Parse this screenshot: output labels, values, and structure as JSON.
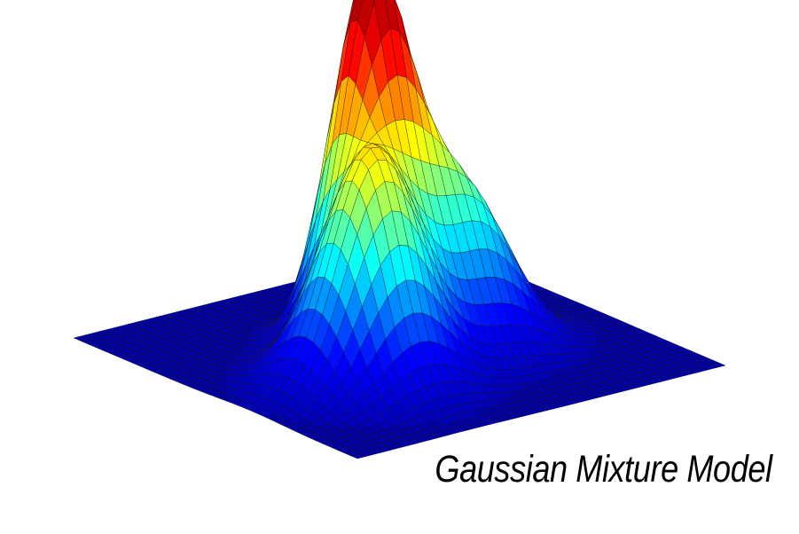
{
  "title": "Gaussian Mixture Model",
  "chart_data": {
    "type": "surface",
    "title": "Gaussian Mixture Model",
    "xlim": [
      -3,
      3
    ],
    "ylim": [
      -3,
      3
    ],
    "zlim": [
      0,
      1
    ],
    "grid_lines": 41,
    "colormap": "jet",
    "colormap_stops": [
      "#00007f",
      "#0000ff",
      "#00ffff",
      "#ffff00",
      "#ff0000",
      "#7f0000"
    ],
    "mesh_color": "#101010",
    "components": [
      {
        "name": "",
        "mean": [
          -0.15,
          0.45
        ],
        "sigma": [
          0.5,
          0.5
        ],
        "peak": 1.0
      },
      {
        "name": "",
        "mean": [
          -1.05,
          -0.75
        ],
        "sigma": [
          0.65,
          0.65
        ],
        "peak": 0.66
      },
      {
        "name": "",
        "mean": [
          0.75,
          -0.35
        ],
        "sigma": [
          0.65,
          0.6
        ],
        "peak": 0.45
      }
    ]
  }
}
